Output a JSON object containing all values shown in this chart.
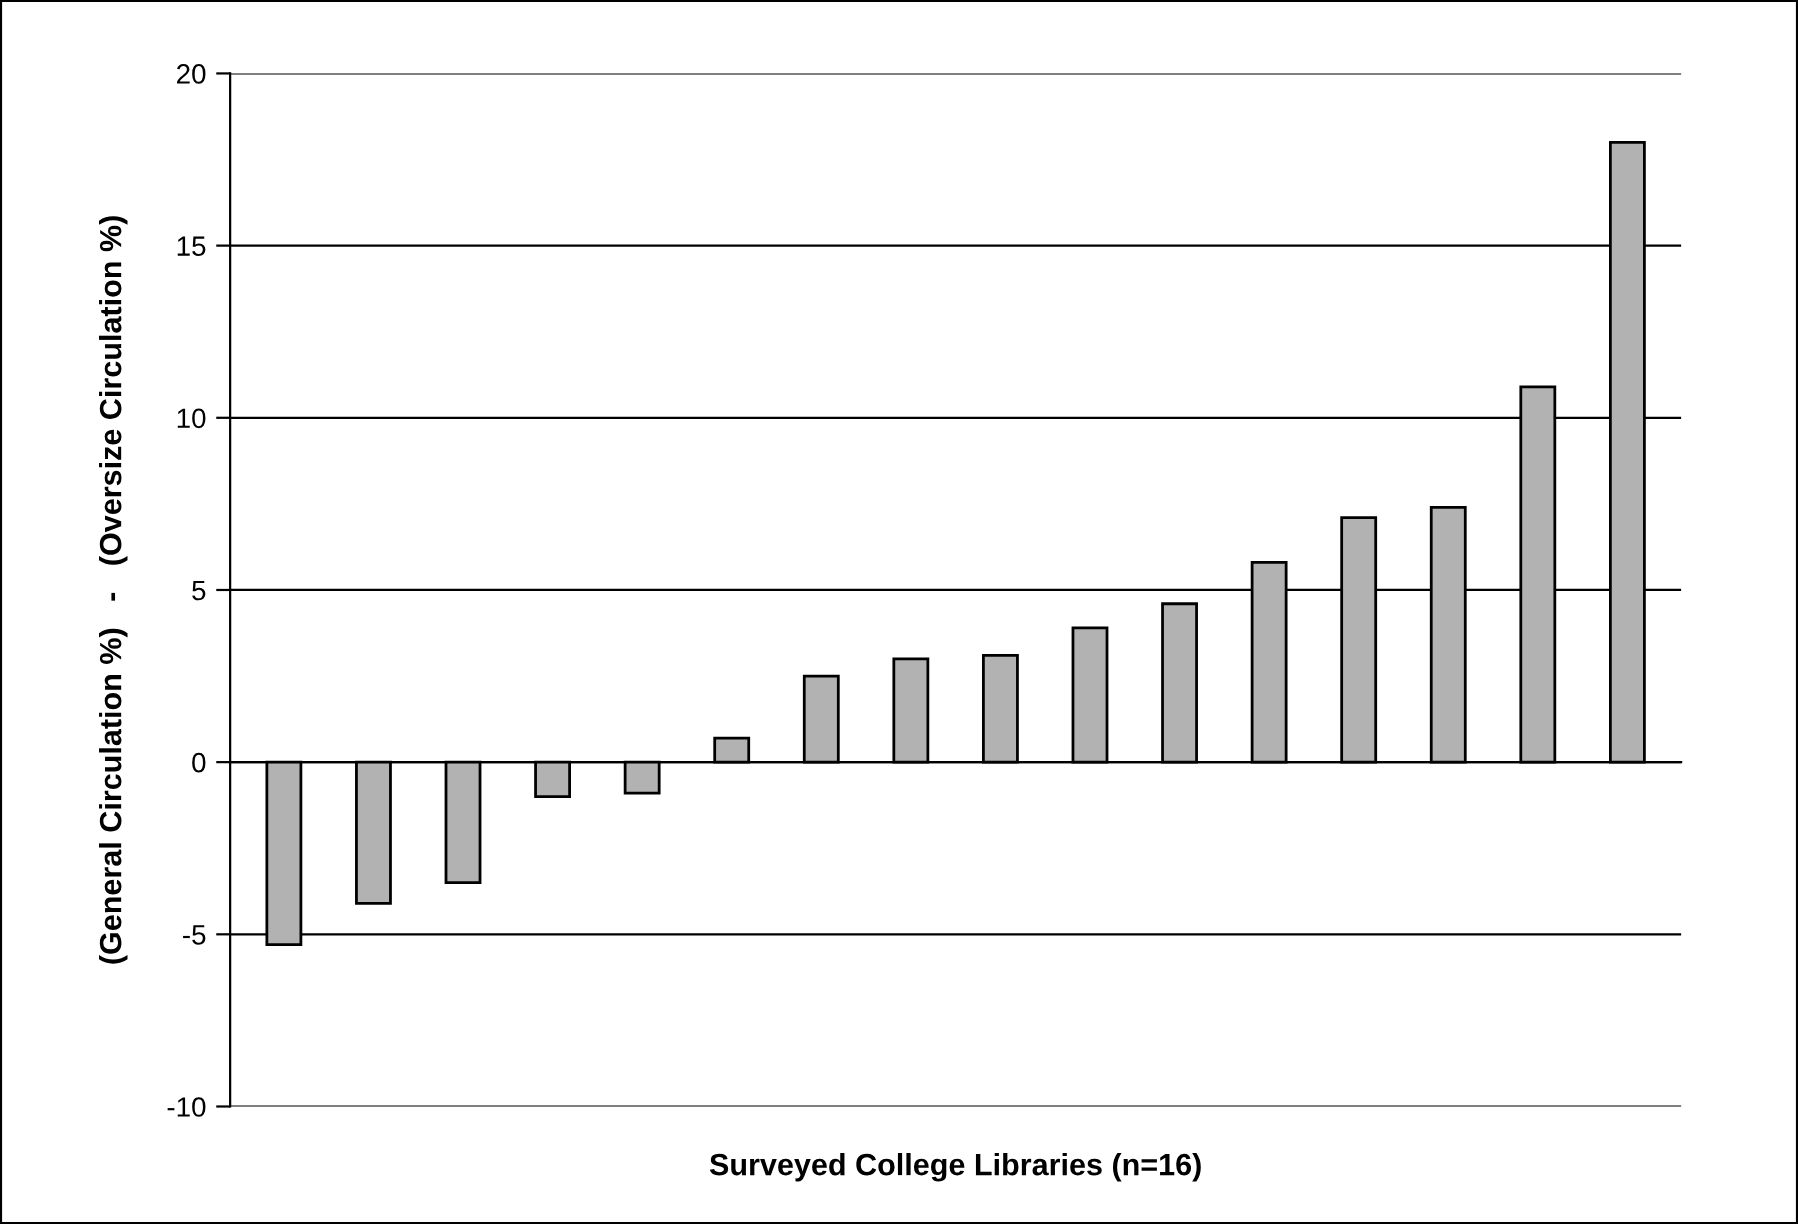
{
  "chart_data": {
    "type": "bar",
    "xlabel": "Surveyed College Libraries (n=16)",
    "ylabel": "(General Circulation %)   -   (Oversize Circulation %)",
    "categories": [
      null,
      null,
      null,
      null,
      null,
      null,
      null,
      null,
      null,
      null,
      null,
      null,
      null,
      null,
      null,
      null
    ],
    "values": [
      -5.3,
      -4.1,
      -3.5,
      -1.0,
      -0.9,
      0.7,
      2.5,
      3.0,
      3.1,
      3.9,
      4.6,
      5.8,
      7.1,
      7.4,
      10.9,
      18.0
    ],
    "color": "#b2b2b2",
    "ylim": [
      -10,
      20
    ],
    "yticks": [
      -10,
      -5,
      0,
      5,
      10,
      15,
      20
    ],
    "grid": "y",
    "legend": false
  }
}
